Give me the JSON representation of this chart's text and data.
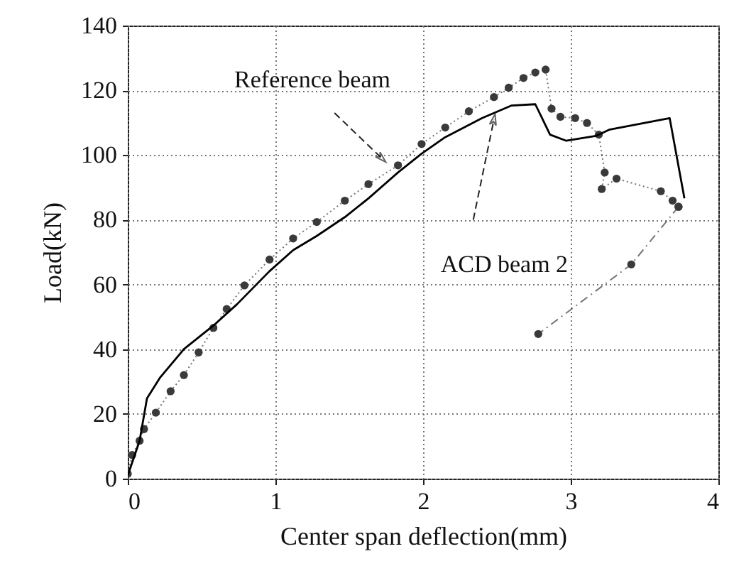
{
  "chart_data": {
    "type": "line",
    "xlabel": "Center span deflection(mm)",
    "ylabel": "Load(kN)",
    "xlim": [
      0,
      4
    ],
    "xticks": [
      0,
      1,
      2,
      3,
      4
    ],
    "ylim": [
      0,
      140
    ],
    "yticks": [
      0,
      20,
      40,
      60,
      80,
      100,
      120,
      140
    ],
    "grid": true,
    "annotations": [
      {
        "text": "Reference beam",
        "x": 1.72,
        "y": 99
      },
      {
        "text": "ACD beam 2",
        "x": 2.48,
        "y": 111
      }
    ],
    "series": [
      {
        "color": "#3a3a3a",
        "marker": "circle",
        "line_style": "dotted",
        "x": [
          0,
          0.03,
          0.08,
          0.11,
          0.19,
          0.29,
          0.38,
          0.48,
          0.58,
          0.67,
          0.79,
          0.96,
          1.12,
          1.28,
          1.47,
          1.63,
          1.83,
          1.99,
          2.15,
          2.31,
          2.48,
          2.58,
          2.68,
          2.76,
          2.83,
          2.87,
          2.93,
          3.03,
          3.11,
          3.19,
          3.23,
          3.21,
          3.31,
          3.61,
          3.69,
          3.73
        ],
        "values": [
          1.5,
          7.3,
          11.7,
          15.3,
          20.4,
          27,
          32,
          39,
          46.6,
          52.4,
          59.7,
          67.7,
          74.2,
          79.3,
          85.9,
          91,
          96.8,
          103.4,
          108.5,
          113.5,
          117.9,
          120.8,
          123.8,
          125.5,
          126.4,
          114.3,
          111.8,
          111.4,
          109.9,
          106.3,
          94.6,
          89.5,
          92.7,
          88.8,
          85.9,
          84
        ]
      },
      {
        "color": "#3a3a3a",
        "marker": "circle",
        "line_style": "dashed",
        "x": [
          3.73,
          3.41,
          2.78
        ],
        "values": [
          84,
          66.2,
          44.7
        ]
      },
      {
        "color": "#000000",
        "marker": "none",
        "line_style": "solid",
        "x": [
          0,
          0.08,
          0.13,
          0.22,
          0.38,
          0.58,
          0.74,
          0.96,
          1.12,
          1.28,
          1.47,
          1.63,
          1.83,
          1.99,
          2.15,
          2.4,
          2.6,
          2.76,
          2.86,
          2.97,
          3.17,
          3.26,
          3.67,
          3.77
        ],
        "values": [
          1,
          11.7,
          24.8,
          31.3,
          40,
          47.3,
          53.9,
          64.1,
          70.6,
          75,
          80.8,
          86.6,
          94.6,
          100.4,
          105.5,
          111.4,
          115.3,
          115.7,
          106.3,
          104.4,
          105.9,
          107.8,
          111.4,
          86.6
        ]
      }
    ]
  }
}
